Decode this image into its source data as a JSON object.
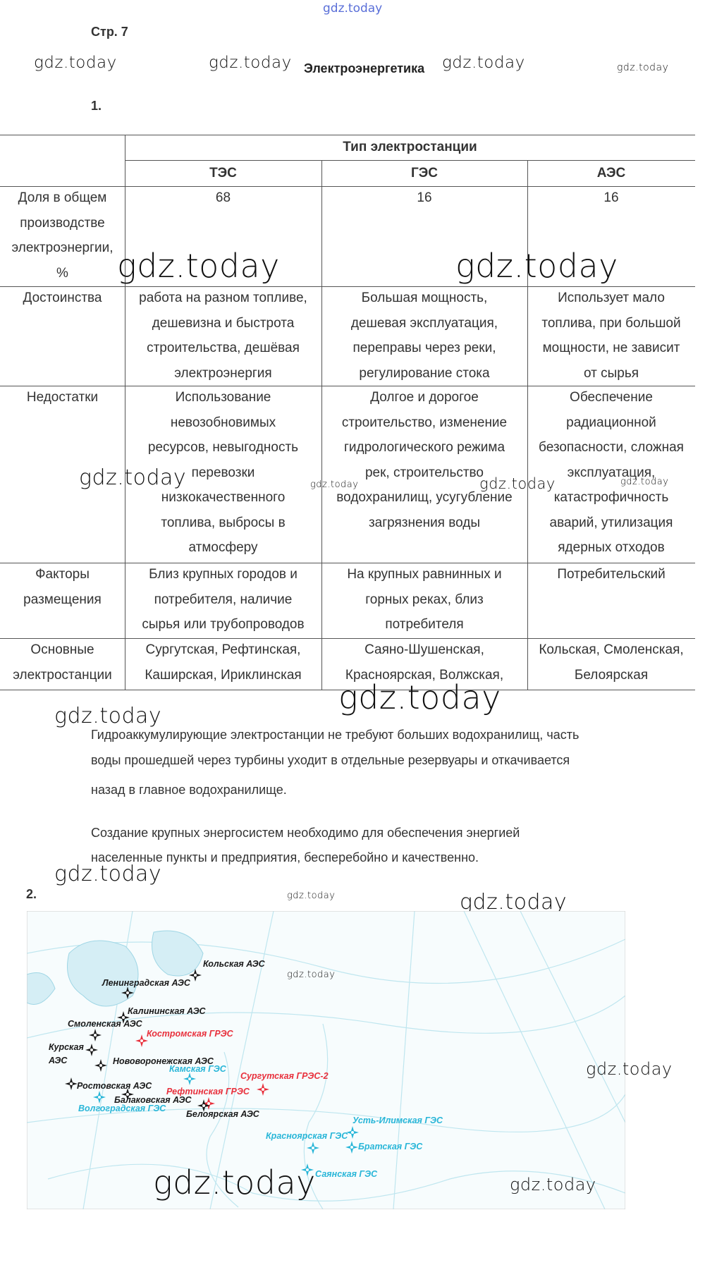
{
  "watermark": "gdz.today",
  "page_label": "Стр. 7",
  "title": "Электроэнергетика",
  "task1_number": "1.",
  "table": {
    "group_header": "Тип электростанции",
    "columns": [
      "ТЭС",
      "ГЭС",
      "АЭС"
    ],
    "rows": [
      {
        "label": [
          "Доля в общем",
          "производстве",
          "электроэнергии,",
          "%"
        ],
        "cells": [
          [
            "68"
          ],
          [
            "16"
          ],
          [
            "16"
          ]
        ]
      },
      {
        "label": [
          "Достоинства"
        ],
        "cells": [
          [
            "работа на разном топливе,",
            "дешевизна и быстрота",
            "строительства, дешёвая",
            "электроэнергия"
          ],
          [
            "Большая мощность,",
            "дешевая эксплуатация,",
            "переправы через реки,",
            "регулирование стока"
          ],
          [
            "Использует мало",
            "топлива, при большой",
            "мощности, не зависит",
            "от сырья"
          ]
        ]
      },
      {
        "label": [
          "Недостатки"
        ],
        "cells": [
          [
            "Использование",
            "невозобновимых",
            "ресурсов, невыгодность",
            "перевозки",
            "низкокачественного",
            "топлива, выбросы в",
            "атмосферу"
          ],
          [
            "Долгое и дорогое",
            "строительство, изменение",
            "гидрологического режима",
            "рек, строительство",
            "водохранилищ, усугубление",
            "загрязнения воды"
          ],
          [
            "Обеспечение",
            "радиационной",
            "безопасности, сложная",
            "эксплуатация,",
            "катастрофичность",
            "аварий, утилизация",
            "ядерных отходов"
          ]
        ]
      },
      {
        "label": [
          "Факторы",
          "размещения"
        ],
        "cells": [
          [
            "Близ крупных городов и",
            "потребителя, наличие",
            "сырья или трубопроводов"
          ],
          [
            "На крупных равнинных и",
            "горных реках, близ",
            "потребителя"
          ],
          [
            "Потребительский"
          ]
        ]
      },
      {
        "label": [
          "Основные",
          "электростанции"
        ],
        "cells": [
          [
            "Сургутская, Рефтинская,",
            "Каширская, Ириклинская"
          ],
          [
            "Саяно-Шушенская,",
            "Красноярская, Волжская,"
          ],
          [
            "Кольская, Смоленская,",
            "Белоярская"
          ]
        ]
      }
    ]
  },
  "paragraphs": [
    [
      "Гидроаккумулирующие электростанции не требуют больших водохранилищ, часть",
      "воды прошедшей через турбины уходит в отдельные резервуары и откачивается",
      "назад в главное водохранилище."
    ],
    [
      " Создание крупных энергосистем необходимо для обеспечения энергией",
      "населенные пункты и предприятия, бесперебойно и качественно."
    ]
  ],
  "task2_number": "2.",
  "map": {
    "colors": {
      "aes": "#1a1a1a",
      "grес": "#e8303c",
      "ges": "#29b6d8"
    },
    "stations": [
      {
        "name": "Кольская АЭС",
        "type": "aes"
      },
      {
        "name": "Ленинградская АЭС",
        "type": "aes"
      },
      {
        "name": "Калининская АЭС",
        "type": "aes"
      },
      {
        "name": "Смоленская АЭС",
        "type": "aes"
      },
      {
        "name": "Костромская ГРЭС",
        "type": "gres"
      },
      {
        "name": "Курская АЭС",
        "type": "aes"
      },
      {
        "name": "Нововоронежская АЭС",
        "type": "aes"
      },
      {
        "name": "Камская ГЭС",
        "type": "ges"
      },
      {
        "name": "Сургутская ГРЭС-2",
        "type": "gres"
      },
      {
        "name": "Ростовская АЭС",
        "type": "aes"
      },
      {
        "name": "Рефтинская ГРЭС",
        "type": "gres"
      },
      {
        "name": "Балаковская АЭС",
        "type": "aes"
      },
      {
        "name": "Волгоградская ГЭС",
        "type": "ges"
      },
      {
        "name": "Белоярская АЭС",
        "type": "aes"
      },
      {
        "name": "Усть-Илимская ГЭС",
        "type": "ges"
      },
      {
        "name": "Красноярская ГЭС",
        "type": "ges"
      },
      {
        "name": "Братская ГЭС",
        "type": "ges"
      },
      {
        "name": "Саянская ГЭС",
        "type": "ges"
      }
    ]
  }
}
